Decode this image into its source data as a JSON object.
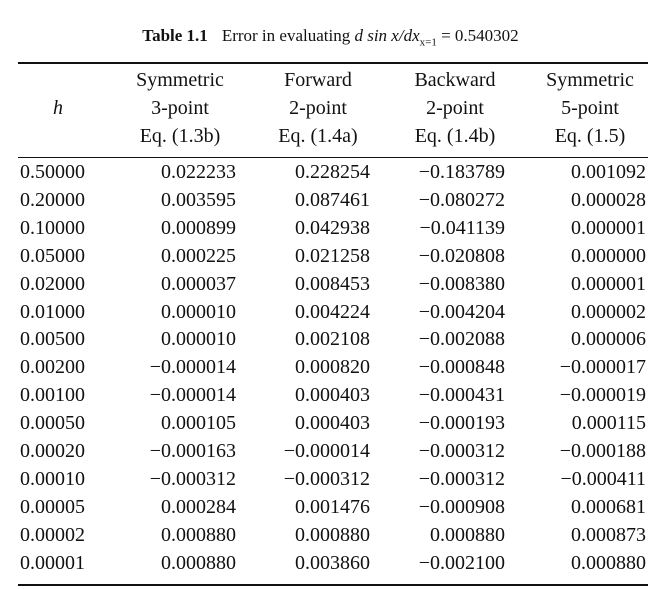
{
  "caption": {
    "label": "Table 1.1",
    "text": "Error in evaluating",
    "expr": "d sin x/dx",
    "sub": "x=1",
    "value": "= 0.540302"
  },
  "table": {
    "header": [
      [
        "h"
      ],
      [
        "Symmetric",
        "3-point",
        "Eq. (1.3b)"
      ],
      [
        "Forward",
        "2-point",
        "Eq. (1.4a)"
      ],
      [
        "Backward",
        "2-point",
        "Eq. (1.4b)"
      ],
      [
        "Symmetric",
        "5-point",
        "Eq. (1.5)"
      ]
    ],
    "rows": [
      [
        "0.50000",
        "0.022233",
        "0.228254",
        "−0.183789",
        "0.001092"
      ],
      [
        "0.20000",
        "0.003595",
        "0.087461",
        "−0.080272",
        "0.000028"
      ],
      [
        "0.10000",
        "0.000899",
        "0.042938",
        "−0.041139",
        "0.000001"
      ],
      [
        "0.05000",
        "0.000225",
        "0.021258",
        "−0.020808",
        "0.000000"
      ],
      [
        "0.02000",
        "0.000037",
        "0.008453",
        "−0.008380",
        "0.000001"
      ],
      [
        "0.01000",
        "0.000010",
        "0.004224",
        "−0.004204",
        "0.000002"
      ],
      [
        "0.00500",
        "0.000010",
        "0.002108",
        "−0.002088",
        "0.000006"
      ],
      [
        "0.00200",
        "−0.000014",
        "0.000820",
        "−0.000848",
        "−0.000017"
      ],
      [
        "0.00100",
        "−0.000014",
        "0.000403",
        "−0.000431",
        "−0.000019"
      ],
      [
        "0.00050",
        "0.000105",
        "0.000403",
        "−0.000193",
        "0.000115"
      ],
      [
        "0.00020",
        "−0.000163",
        "−0.000014",
        "−0.000312",
        "−0.000188"
      ],
      [
        "0.00010",
        "−0.000312",
        "−0.000312",
        "−0.000312",
        "−0.000411"
      ],
      [
        "0.00005",
        "0.000284",
        "0.001476",
        "−0.000908",
        "0.000681"
      ],
      [
        "0.00002",
        "0.000880",
        "0.000880",
        "0.000880",
        "0.000873"
      ],
      [
        "0.00001",
        "0.000880",
        "0.003860",
        "−0.002100",
        "0.000880"
      ]
    ]
  }
}
